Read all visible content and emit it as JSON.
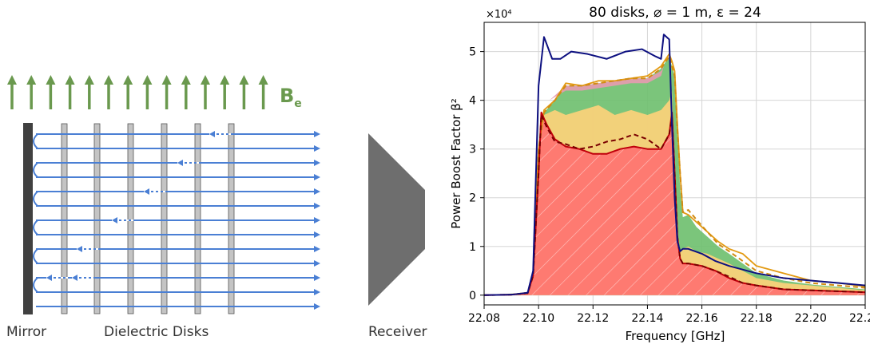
{
  "diagram": {
    "field_label": "B",
    "field_subscript": "e",
    "mirror_label": "Mirror",
    "disks_label": "Dielectric Disks",
    "receiver_label": "Receiver",
    "field_color": "#6a994e",
    "ray_color": "#4a7fd4",
    "disk_count": 6,
    "arrow_count": 14
  },
  "chart_data": {
    "type": "area",
    "title": "80 disks, ⌀ = 1 m, ε = 24",
    "xlabel": "Frequency  [GHz]",
    "ylabel": "Power Boost Factor β²",
    "y_multiplier": "×10⁴",
    "xlim": [
      22.08,
      22.22
    ],
    "ylim": [
      -0.2,
      5.6
    ],
    "xticks": [
      22.08,
      22.1,
      22.12,
      22.14,
      22.16,
      22.18,
      22.2,
      22.22
    ],
    "xtick_labels": [
      "22.08",
      "22.10",
      "22.12",
      "22.14",
      "22.16",
      "22.18",
      "22.20",
      "22.22"
    ],
    "yticks": [
      0,
      1,
      2,
      3,
      4,
      5
    ],
    "ytick_labels": [
      "0",
      "1",
      "2",
      "3",
      "4",
      "5"
    ],
    "grid": true,
    "series": [
      {
        "role": "dark-blue-line",
        "color": "#0d1080",
        "x": [
          22.08,
          22.09,
          22.096,
          22.098,
          22.1,
          22.102,
          22.105,
          22.108,
          22.112,
          22.118,
          22.125,
          22.132,
          22.138,
          22.143,
          22.145,
          22.146,
          22.148,
          22.149,
          22.15,
          22.151,
          22.152,
          22.153,
          22.155,
          22.16,
          22.165,
          22.17,
          22.18,
          22.19,
          22.2,
          22.21,
          22.22
        ],
        "y": [
          0,
          0.01,
          0.05,
          0.5,
          4.3,
          5.3,
          4.85,
          4.85,
          5.0,
          4.95,
          4.85,
          5.0,
          5.05,
          4.9,
          4.85,
          5.35,
          5.25,
          3.5,
          2.0,
          1.1,
          0.9,
          0.95,
          0.95,
          0.85,
          0.7,
          0.6,
          0.45,
          0.35,
          0.3,
          0.25,
          0.2
        ]
      },
      {
        "role": "orange-line",
        "color": "#e39a12",
        "x": [
          22.08,
          22.09,
          22.096,
          22.098,
          22.1,
          22.102,
          22.106,
          22.11,
          22.116,
          22.122,
          22.128,
          22.134,
          22.14,
          22.145,
          22.148,
          22.149,
          22.15,
          22.151,
          22.152,
          22.153,
          22.155,
          22.158,
          22.162,
          22.166,
          22.17,
          22.175,
          22.18,
          22.19,
          22.2,
          22.21,
          22.22
        ],
        "y": [
          0,
          0.01,
          0.05,
          0.4,
          3.0,
          3.8,
          4.0,
          4.35,
          4.3,
          4.4,
          4.4,
          4.45,
          4.5,
          4.7,
          4.95,
          4.8,
          4.6,
          3.5,
          2.5,
          1.7,
          1.65,
          1.5,
          1.3,
          1.1,
          0.95,
          0.85,
          0.6,
          0.45,
          0.3,
          0.25,
          0.18
        ]
      },
      {
        "role": "red-line",
        "color": "#c0000b",
        "x": [
          22.08,
          22.09,
          22.096,
          22.098,
          22.1,
          22.101,
          22.103,
          22.106,
          22.11,
          22.115,
          22.12,
          22.125,
          22.13,
          22.135,
          22.14,
          22.145,
          22.148,
          22.149,
          22.15,
          22.151,
          22.152,
          22.153,
          22.155,
          22.16,
          22.165,
          22.17,
          22.175,
          22.18,
          22.19,
          22.2,
          22.21,
          22.22
        ],
        "y": [
          0,
          0.01,
          0.04,
          0.4,
          2.5,
          3.75,
          3.5,
          3.2,
          3.05,
          3.0,
          2.9,
          2.9,
          3.0,
          3.05,
          3.0,
          3.0,
          3.3,
          3.75,
          2.5,
          1.2,
          0.75,
          0.65,
          0.65,
          0.6,
          0.5,
          0.35,
          0.25,
          0.2,
          0.12,
          0.1,
          0.08,
          0.06
        ]
      },
      {
        "role": "dark-red-dashed",
        "color": "#7a0000",
        "x": [
          22.08,
          22.09,
          22.096,
          22.098,
          22.1,
          22.101,
          22.103,
          22.106,
          22.11,
          22.115,
          22.12,
          22.125,
          22.13,
          22.135,
          22.14,
          22.145,
          22.148,
          22.149,
          22.15,
          22.151,
          22.152,
          22.153,
          22.155,
          22.16,
          22.165,
          22.17,
          22.175,
          22.18,
          22.19,
          22.2,
          22.21,
          22.22
        ],
        "y": [
          0,
          0.01,
          0.04,
          0.4,
          2.5,
          3.7,
          3.45,
          3.15,
          3.1,
          3.0,
          3.05,
          3.15,
          3.2,
          3.3,
          3.2,
          3.0,
          3.3,
          3.65,
          2.5,
          1.2,
          0.75,
          0.65,
          0.65,
          0.6,
          0.5,
          0.38,
          0.25,
          0.2,
          0.12,
          0.1,
          0.08,
          0.06
        ]
      },
      {
        "role": "orange-dashed",
        "color": "#d18b12",
        "x": [
          22.08,
          22.09,
          22.096,
          22.098,
          22.1,
          22.102,
          22.106,
          22.11,
          22.116,
          22.122,
          22.128,
          22.134,
          22.14,
          22.145,
          22.148,
          22.149,
          22.15,
          22.151,
          22.152,
          22.153,
          22.155,
          22.158,
          22.162,
          22.166,
          22.17,
          22.175,
          22.18,
          22.19,
          22.2,
          22.21,
          22.22
        ],
        "y": [
          0,
          0.01,
          0.05,
          0.4,
          3.0,
          3.75,
          4.0,
          4.3,
          4.3,
          4.35,
          4.4,
          4.45,
          4.45,
          4.65,
          4.9,
          4.7,
          4.5,
          3.4,
          2.5,
          1.7,
          1.75,
          1.55,
          1.3,
          1.05,
          0.9,
          0.7,
          0.5,
          0.35,
          0.25,
          0.2,
          0.15
        ]
      }
    ],
    "areas": [
      {
        "role": "red-area",
        "color": "#ff7070",
        "x": [
          22.08,
          22.096,
          22.098,
          22.1,
          22.101,
          22.103,
          22.106,
          22.11,
          22.115,
          22.12,
          22.125,
          22.13,
          22.135,
          22.14,
          22.145,
          22.148,
          22.149,
          22.15,
          22.151,
          22.152,
          22.153,
          22.155,
          22.16,
          22.165,
          22.17,
          22.175,
          22.18,
          22.19,
          22.2,
          22.21,
          22.22
        ],
        "y": [
          0,
          0.04,
          0.4,
          2.5,
          3.75,
          3.5,
          3.2,
          3.05,
          3.0,
          2.9,
          2.9,
          3.0,
          3.05,
          3.0,
          3.0,
          3.3,
          3.75,
          2.5,
          1.2,
          0.75,
          0.65,
          0.65,
          0.6,
          0.5,
          0.35,
          0.25,
          0.2,
          0.12,
          0.1,
          0.08,
          0.06
        ]
      },
      {
        "role": "yellow-area",
        "color": "#ffd27a",
        "x": [
          22.08,
          22.096,
          22.098,
          22.1,
          22.102,
          22.106,
          22.11,
          22.116,
          22.122,
          22.128,
          22.134,
          22.14,
          22.145,
          22.148,
          22.149,
          22.15,
          22.151,
          22.152,
          22.153,
          22.155,
          22.158,
          22.162,
          22.166,
          22.17,
          22.175,
          22.18,
          22.19,
          22.2,
          22.21,
          22.22
        ],
        "y": [
          0,
          0.05,
          0.4,
          3.0,
          3.7,
          3.8,
          3.7,
          3.8,
          3.9,
          3.7,
          3.8,
          3.7,
          3.8,
          4.0,
          4.2,
          2.6,
          1.3,
          0.9,
          0.95,
          1.0,
          0.9,
          0.85,
          0.75,
          0.65,
          0.5,
          0.35,
          0.25,
          0.2,
          0.15,
          0.1
        ]
      },
      {
        "role": "green-area",
        "color": "#6dbf6d",
        "x": [
          22.08,
          22.096,
          22.098,
          22.1,
          22.102,
          22.106,
          22.11,
          22.116,
          22.122,
          22.128,
          22.134,
          22.14,
          22.145,
          22.148,
          22.149,
          22.15,
          22.151,
          22.152,
          22.153,
          22.155,
          22.158,
          22.162,
          22.166,
          22.17,
          22.175,
          22.18,
          22.19,
          22.2,
          22.21,
          22.22
        ],
        "y": [
          0,
          0.05,
          0.4,
          3.0,
          3.75,
          4.0,
          4.3,
          4.3,
          4.35,
          4.4,
          4.45,
          4.45,
          4.65,
          4.9,
          4.7,
          4.5,
          3.3,
          2.2,
          1.6,
          1.65,
          1.4,
          1.2,
          1.0,
          0.85,
          0.65,
          0.45,
          0.3,
          0.22,
          0.17,
          0.12
        ]
      },
      {
        "role": "pink-area",
        "color": "#e89ab0",
        "x": [
          22.104,
          22.11,
          22.116,
          22.122,
          22.128,
          22.134,
          22.14,
          22.145,
          22.146,
          22.145,
          22.14,
          22.134,
          22.128,
          22.122,
          22.116,
          22.11,
          22.104
        ],
        "y": [
          4.0,
          4.3,
          4.3,
          4.35,
          4.4,
          4.45,
          4.45,
          4.6,
          4.7,
          4.5,
          4.35,
          4.35,
          4.3,
          4.25,
          4.2,
          4.2,
          4.0
        ]
      }
    ]
  }
}
